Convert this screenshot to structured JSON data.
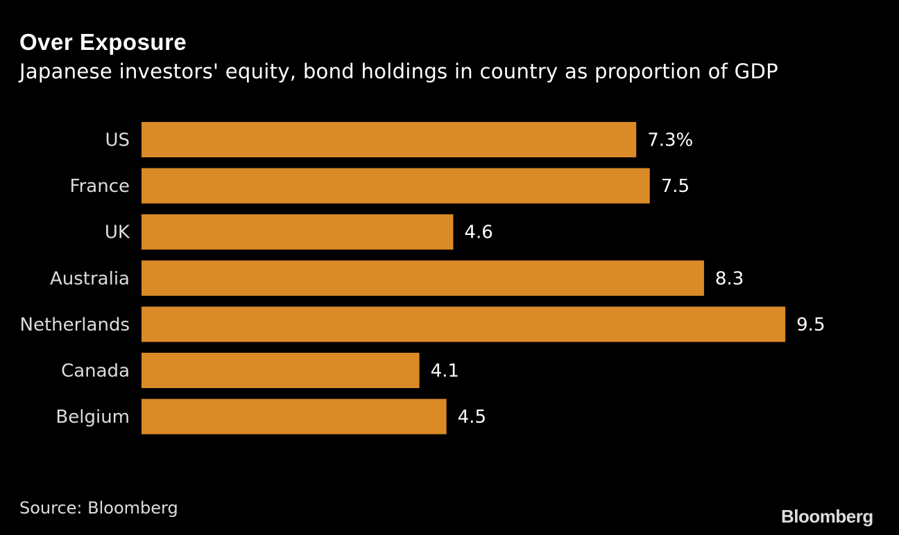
{
  "title": "Over Exposure",
  "subtitle": "Japanese investors' equity, bond holdings in country as proportion of GDP",
  "source": "Source: Bloomberg",
  "logo": "Bloomberg",
  "chart_data": {
    "type": "bar",
    "orientation": "horizontal",
    "title": "Over Exposure",
    "subtitle": "Japanese investors' equity, bond holdings in country as proportion of GDP",
    "categories": [
      "US",
      "France",
      "UK",
      "Australia",
      "Netherlands",
      "Canada",
      "Belgium"
    ],
    "values": [
      7.3,
      7.5,
      4.6,
      8.3,
      9.5,
      4.1,
      4.5
    ],
    "data_labels": [
      "7.3%",
      "7.5",
      "4.6",
      "8.3",
      "9.5",
      "4.1",
      "4.5"
    ],
    "unit": "%",
    "xlim": [
      0,
      9.5
    ],
    "grid": false,
    "bar_color": "#DA8A27",
    "background": "#000000"
  }
}
